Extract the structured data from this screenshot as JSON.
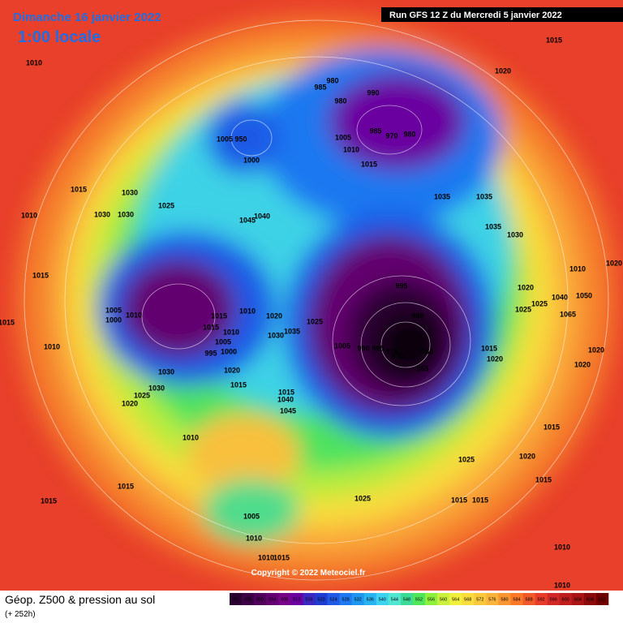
{
  "header": {
    "title": "Dimanche 16 janvier 2022",
    "time": "1:00 locale",
    "run": "Run GFS 12 Z du Mercredi 5 janvier 2022"
  },
  "map": {
    "copyright": "Copyright © 2022 Meteociel.fr",
    "pressure_labels": [
      1010,
      1015,
      1020,
      980,
      985,
      990,
      980,
      1005,
      950,
      1000,
      985,
      970,
      980,
      1005,
      1010,
      1015,
      1035,
      1035,
      1015,
      1030,
      1025,
      1010,
      1030,
      1030,
      1045,
      1040,
      1035,
      1030,
      1015,
      1005,
      1010,
      1000,
      995,
      1015,
      1010,
      1020,
      1025,
      980,
      1015,
      1010,
      1035,
      1030,
      1005,
      995,
      1000,
      1005,
      990,
      985,
      975,
      970,
      960,
      965,
      1015,
      1020,
      1030,
      1020,
      1015,
      1025,
      1030,
      1020,
      1015,
      1040,
      1045,
      1010,
      1015,
      1015,
      1005,
      1010,
      1010,
      1015,
      1025,
      1025,
      1020,
      1015,
      1015,
      1015,
      1015,
      1020,
      1025,
      1025,
      1020,
      1020,
      1010,
      1015,
      1010,
      1010,
      1020,
      1065,
      1050,
      1040,
      1010
    ]
  },
  "footer": {
    "title": "Géop. Z500 & pression au sol",
    "lead": "(+ 252h)"
  },
  "colorbar": {
    "labels": [
      492,
      496,
      500,
      504,
      508,
      512,
      516,
      520,
      524,
      528,
      532,
      536,
      540,
      544,
      548,
      552,
      556,
      560,
      564,
      568,
      572,
      576,
      580,
      584,
      588,
      592,
      596,
      600,
      604,
      608,
      612
    ],
    "colors": [
      "#2a0030",
      "#3c0045",
      "#50005a",
      "#640070",
      "#780088",
      "#6a00a0",
      "#3c28c0",
      "#1e3cd0",
      "#1e5ae6",
      "#1e78f0",
      "#1e96f0",
      "#28b4f0",
      "#3cd2f0",
      "#50e6d2",
      "#3cdc96",
      "#50e65a",
      "#8cf03c",
      "#c8f03c",
      "#f0f03c",
      "#fadc3c",
      "#fac83c",
      "#fab43c",
      "#fa9632",
      "#fa7828",
      "#f05a28",
      "#e63c28",
      "#d22828",
      "#be1e1e",
      "#aa1414",
      "#8c0a0a",
      "#6e0000"
    ]
  }
}
